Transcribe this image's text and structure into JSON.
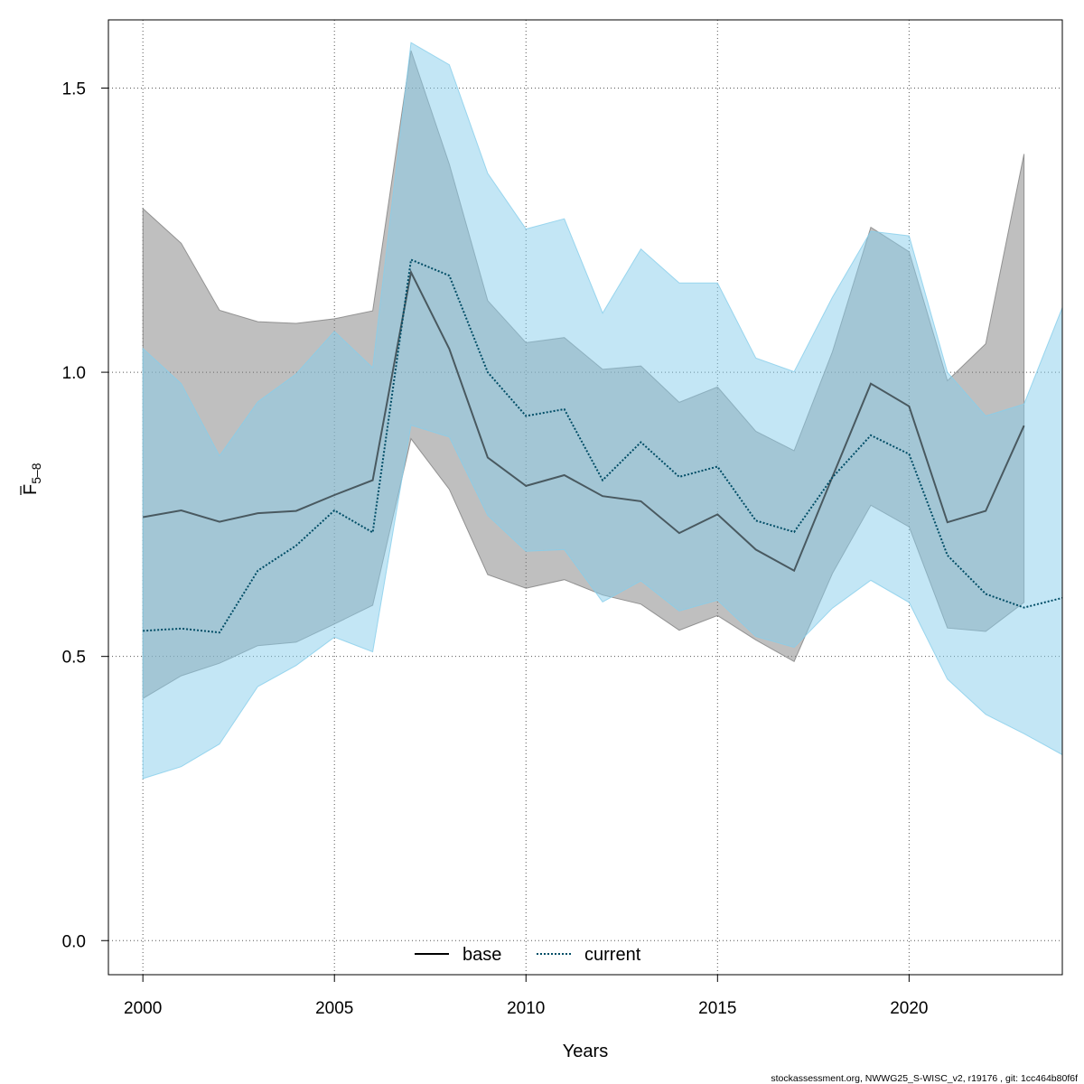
{
  "chart_data": {
    "type": "area",
    "xlabel": "Years",
    "ylabel_main": "F",
    "ylabel_sub": "5–8",
    "xlim": [
      1999.1,
      2024
    ],
    "ylim": [
      -0.06,
      1.62
    ],
    "x_ticks": [
      2000,
      2005,
      2010,
      2015,
      2020
    ],
    "y_ticks": [
      0.0,
      0.5,
      1.0,
      1.5
    ],
    "y_tick_labels": [
      "0.0",
      "0.5",
      "1.0",
      "1.5"
    ],
    "grid": true,
    "legend_position": "bottom-center",
    "series": [
      {
        "name": "base",
        "line_style": "solid",
        "line_color": "#000000",
        "band_color": "#808080",
        "x": [
          2000,
          2001,
          2002,
          2003,
          2004,
          2005,
          2006,
          2007,
          2008,
          2009,
          2010,
          2011,
          2012,
          2013,
          2014,
          2015,
          2016,
          2017,
          2018,
          2019,
          2020,
          2021,
          2022,
          2023
        ],
        "values": [
          0.745,
          0.757,
          0.737,
          0.752,
          0.756,
          0.784,
          0.81,
          1.176,
          1.041,
          0.85,
          0.8,
          0.819,
          0.782,
          0.773,
          0.717,
          0.75,
          0.688,
          0.651,
          0.816,
          0.98,
          0.94,
          0.736,
          0.756,
          0.906
        ],
        "lower": [
          0.426,
          0.466,
          0.488,
          0.519,
          0.525,
          0.557,
          0.59,
          0.883,
          0.794,
          0.644,
          0.62,
          0.635,
          0.608,
          0.592,
          0.546,
          0.572,
          0.529,
          0.491,
          0.646,
          0.766,
          0.728,
          0.55,
          0.544,
          0.595
        ],
        "upper": [
          1.288,
          1.227,
          1.109,
          1.089,
          1.086,
          1.094,
          1.108,
          1.566,
          1.366,
          1.126,
          1.052,
          1.061,
          1.005,
          1.011,
          0.947,
          0.974,
          0.896,
          0.862,
          1.036,
          1.255,
          1.212,
          0.985,
          1.05,
          1.384
        ]
      },
      {
        "name": "current",
        "line_style": "dotted",
        "line_color": "#004d66",
        "band_color": "#87ceeb",
        "x": [
          2000,
          2001,
          2002,
          2003,
          2004,
          2005,
          2006,
          2007,
          2008,
          2009,
          2010,
          2011,
          2012,
          2013,
          2014,
          2015,
          2016,
          2017,
          2018,
          2019,
          2020,
          2021,
          2022,
          2023,
          2024
        ],
        "values": [
          0.545,
          0.549,
          0.542,
          0.651,
          0.695,
          0.757,
          0.718,
          1.198,
          1.17,
          1.0,
          0.923,
          0.935,
          0.81,
          0.877,
          0.816,
          0.834,
          0.739,
          0.719,
          0.815,
          0.889,
          0.856,
          0.678,
          0.61,
          0.586,
          0.603
        ],
        "lower": [
          0.285,
          0.306,
          0.346,
          0.447,
          0.484,
          0.534,
          0.508,
          0.907,
          0.886,
          0.748,
          0.685,
          0.688,
          0.596,
          0.633,
          0.58,
          0.599,
          0.535,
          0.516,
          0.585,
          0.634,
          0.595,
          0.46,
          0.398,
          0.364,
          0.327
        ],
        "upper": [
          1.042,
          0.98,
          0.853,
          0.948,
          0.997,
          1.072,
          1.008,
          1.58,
          1.541,
          1.35,
          1.252,
          1.27,
          1.104,
          1.217,
          1.157,
          1.157,
          1.025,
          1.001,
          1.132,
          1.248,
          1.24,
          1.0,
          0.923,
          0.944,
          1.114
        ]
      }
    ]
  },
  "footer_text": "stockassessment.org, NWWG25_S-WISC_v2, r19176 , git: 1cc464b80f6f"
}
